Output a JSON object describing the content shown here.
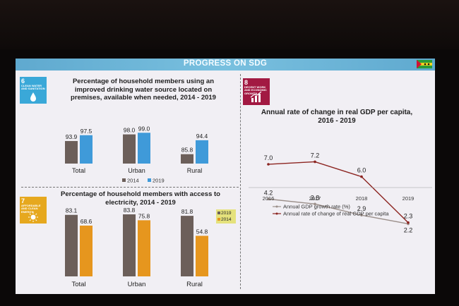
{
  "banner": {
    "title": "PROGRESS ON SDG"
  },
  "icons": {
    "flag": "sao-tome-principe-flag-icon",
    "sdg6": {
      "number": "6",
      "label": "CLEAN WATER AND SANITATION",
      "icon": "water-drop-icon",
      "color": "#3aa8d8"
    },
    "sdg7": {
      "number": "7",
      "label": "AFFORDABLE AND CLEAN ENERGY",
      "icon": "sun-icon",
      "color": "#e6a81e"
    },
    "sdg8": {
      "number": "8",
      "label": "DECENT WORK AND ECONOMIC GROWTH",
      "icon": "growth-chart-icon",
      "color": "#a21942"
    }
  },
  "chart_data": [
    {
      "type": "bar",
      "title": "Percentage of household members using an improved drinking water source located on premises, available when needed, 2014 - 2019",
      "categories": [
        "Total",
        "Urban",
        "Rural"
      ],
      "series": [
        {
          "name": "2014",
          "values": [
            93.9,
            98.0,
            85.8
          ],
          "labels": [
            "93.9",
            "98.0",
            "85.8"
          ],
          "color": "#6c5f5a"
        },
        {
          "name": "2019",
          "values": [
            97.5,
            99.0,
            94.4
          ],
          "labels": [
            "97.5",
            "99.0",
            "94.4"
          ],
          "color": "#3f9ad9"
        }
      ],
      "legend": "bottom"
    },
    {
      "type": "bar",
      "title": "Percentage of household members with access to electricity, 2014 - 2019",
      "categories": [
        "Total",
        "Urban",
        "Rural"
      ],
      "series": [
        {
          "name": "2019",
          "values": [
            83.1,
            83.8,
            81.8
          ],
          "labels": [
            "83.1",
            "83.8",
            "81.8"
          ],
          "color": "#6c5f5a"
        },
        {
          "name": "2014",
          "values": [
            68.6,
            75.8,
            54.8
          ],
          "labels": [
            "68.6",
            "75.8",
            "54.8"
          ],
          "color": "#e6961e"
        }
      ],
      "legend": "top-right"
    },
    {
      "type": "line",
      "title": "Annual rate of change in real GDP per capita, 2016 - 2019",
      "x": [
        "2016",
        "2017",
        "2018",
        "2019"
      ],
      "series": [
        {
          "name": "Annual GDP growth rate (%)",
          "values": [
            4.2,
            3.8,
            2.9,
            2.2
          ],
          "labels": [
            "4.2",
            "3.8",
            "2.9",
            "2.2"
          ],
          "color": "#9b8f8a"
        },
        {
          "name": "Annual rate of change of real GDP per capita",
          "values": [
            7.0,
            7.2,
            6.0,
            2.3
          ],
          "labels": [
            "7.0",
            "7.2",
            "6.0",
            "2.3"
          ],
          "color": "#8c2420"
        }
      ],
      "legend": "bottom"
    }
  ]
}
